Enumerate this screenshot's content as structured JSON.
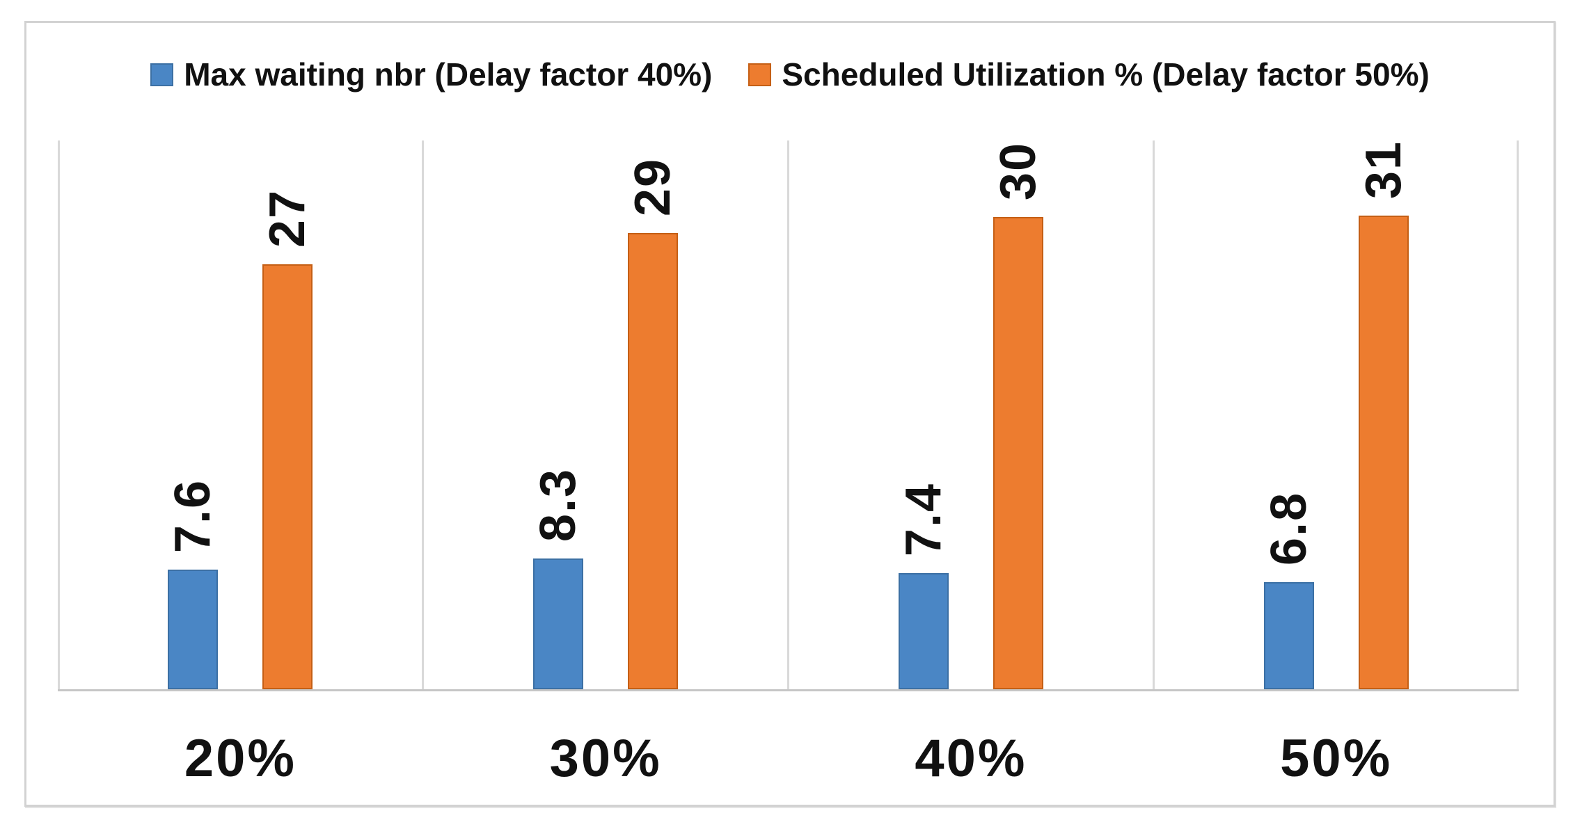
{
  "chart_data": {
    "type": "bar",
    "title": "",
    "categories": [
      "20%",
      "30%",
      "40%",
      "50%"
    ],
    "series": [
      {
        "name": "Max waiting nbr (Delay factor 40%)",
        "values": [
          7.6,
          8.3,
          7.4,
          6.8
        ],
        "labels": [
          "7.6",
          "8.3",
          "7.4",
          "6.8"
        ],
        "color": "#4A86C5",
        "border_color": "#3C70A4"
      },
      {
        "name": "Scheduled Utilization % (Delay factor 50%)",
        "values": [
          27,
          29,
          30,
          31
        ],
        "labels": [
          "27",
          "29",
          "30",
          "31"
        ],
        "color": "#ED7C2F",
        "border_color": "#C55F15"
      }
    ],
    "xlabel": "",
    "ylabel": "",
    "ylim": [
      0,
      35
    ],
    "y_axis_labels_visible": false,
    "legend_position": "top",
    "grid": "vertical category separator lines only",
    "data_label_rotation": "rotated up (read bottom to top)",
    "colors": {
      "gridline": "#D9D9D9",
      "baseline": "#C6C6C6",
      "frame_border": "#D2D2D2",
      "label_text": "#111111"
    }
  }
}
